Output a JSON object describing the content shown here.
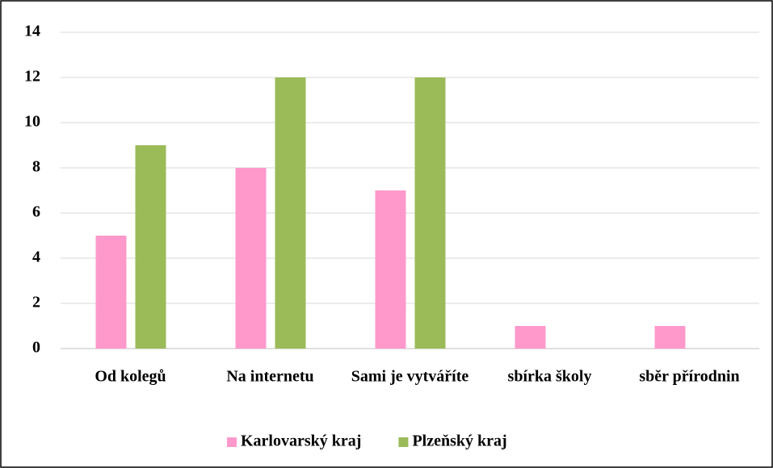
{
  "chart_data": {
    "type": "bar",
    "categories": [
      "Od kolegů",
      "Na internetu",
      "Sami je vytváříte",
      "sbírka školy",
      "sběr přírodnin"
    ],
    "series": [
      {
        "name": "Karlovarský kraj",
        "color": "#ff99cc",
        "values": [
          5,
          8,
          7,
          1,
          1
        ]
      },
      {
        "name": "Plzeňský kraj",
        "color": "#9bbb59",
        "values": [
          9,
          12,
          12,
          0,
          0
        ]
      }
    ],
    "ylim": [
      0,
      14
    ],
    "yticks": [
      0,
      2,
      4,
      6,
      8,
      10,
      12,
      14
    ],
    "grid": true,
    "legend": "bottom"
  }
}
